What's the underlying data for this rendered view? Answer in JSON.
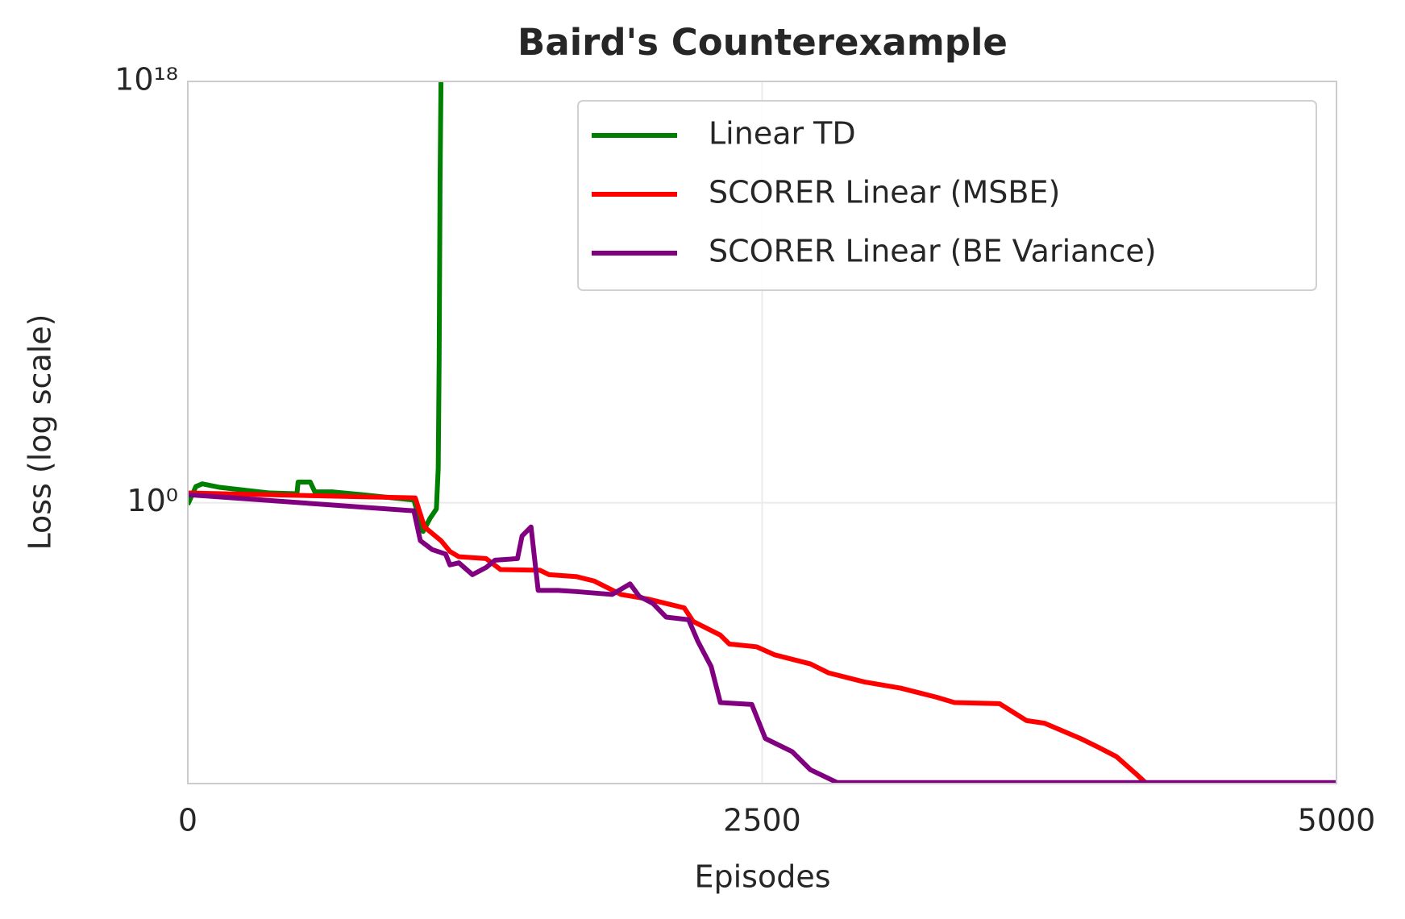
{
  "chart_data": {
    "type": "line",
    "title": "Baird's Counterexample",
    "xlabel": "Episodes",
    "ylabel": "Loss (log scale)",
    "xlim": [
      0,
      5000
    ],
    "xticks": [
      0,
      2500,
      5000
    ],
    "ylim": [
      1e-12,
      1e+18
    ],
    "yscale": "log",
    "yticks": [
      {
        "value": 1,
        "label": "10⁰"
      },
      {
        "value": 1e+18,
        "label": "10¹⁸"
      }
    ],
    "grid": true,
    "legend": "upper right",
    "series": [
      {
        "name": "Linear TD",
        "color": "#008000",
        "x": [
          0,
          35,
          63,
          141,
          357,
          475,
          480,
          533,
          553,
          631,
          757,
          984,
          1024,
          1055,
          1082,
          1090,
          1094,
          1098,
          1102
        ],
        "values": [
          0.84,
          4.9,
          6.4,
          4.5,
          2.6,
          2.4,
          7.6,
          7.6,
          2.9,
          2.9,
          2.2,
          1.3,
          0.059,
          0.22,
          0.54,
          29,
          1200000,
          60000000000000,
          1e+18
        ]
      },
      {
        "name": "SCORER Linear (MSBE)",
        "color": "#ff0000",
        "x": [
          0,
          990,
          1030,
          1102,
          1141,
          1180,
          1298,
          1361,
          1533,
          1573,
          1690,
          1769,
          1886,
          2004,
          2161,
          2200,
          2318,
          2357,
          2475,
          2553,
          2710,
          2788,
          2945,
          3102,
          3259,
          3337,
          3533,
          3651,
          3729,
          3886,
          3965,
          4043,
          4122,
          4173
        ],
        "values": [
          2.6,
          1.6,
          0.092,
          0.024,
          0.0083,
          0.0049,
          0.0041,
          0.0014,
          0.0013,
          0.00084,
          0.0007,
          0.00045,
          0.00012,
          7.6e-05,
          3.2e-05,
          8.4e-06,
          2.2e-06,
          9.2e-07,
          7e-07,
          3.2e-07,
          1.3e-07,
          5.4e-08,
          2.2e-08,
          1.2e-08,
          4.9e-09,
          2.9e-09,
          2.6e-09,
          4.9e-10,
          3.8e-10,
          8.4e-11,
          3.5e-11,
          1.4e-11,
          2.9e-12,
          1e-12
        ]
      },
      {
        "name": "SCORER Linear (BE Variance)",
        "color": "#800080",
        "x": [
          0,
          984,
          1012,
          1063,
          1122,
          1141,
          1180,
          1239,
          1298,
          1337,
          1435,
          1455,
          1494,
          1525,
          1612,
          1690,
          1847,
          1925,
          1965,
          2024,
          2082,
          2180,
          2220,
          2278,
          2318,
          2455,
          2514,
          2631,
          2710,
          2827,
          5000
        ],
        "values": [
          2.2,
          0.45,
          0.024,
          0.01,
          0.0064,
          0.0022,
          0.0027,
          0.00084,
          0.0017,
          0.0035,
          0.0041,
          0.038,
          0.092,
          0.00018,
          0.00018,
          0.00016,
          0.00012,
          0.00034,
          0.0001,
          5e-05,
          1.3e-05,
          1e-05,
          1.2e-06,
          1e-07,
          2.9e-09,
          2.4e-09,
          8.4e-11,
          2.3e-11,
          3.9e-12,
          1.1e-12,
          1.1e-12
        ]
      }
    ]
  }
}
